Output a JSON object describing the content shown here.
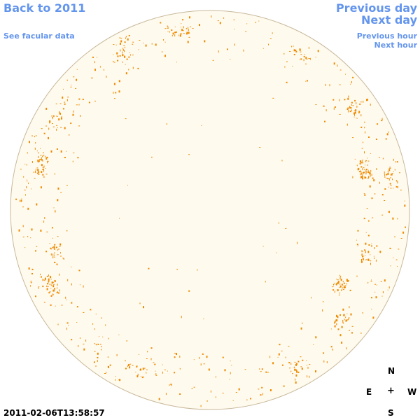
{
  "nav": {
    "back_label": "Back to 2011",
    "facular_label": "See facular data",
    "prev_day_label": "Previous day",
    "next_day_label": "Next day",
    "prev_hour_label": "Previous hour",
    "next_hour_label": "Next hour"
  },
  "compass": {
    "north": "N",
    "east": "E",
    "center": "+",
    "west": "W",
    "south": "S"
  },
  "timestamp": "2011-02-06T13:58:57",
  "colors": {
    "link": "#6495ed",
    "disk_fill": "#fefaee",
    "disk_outline": "#c8b89a",
    "facula": "#ee8a00"
  }
}
